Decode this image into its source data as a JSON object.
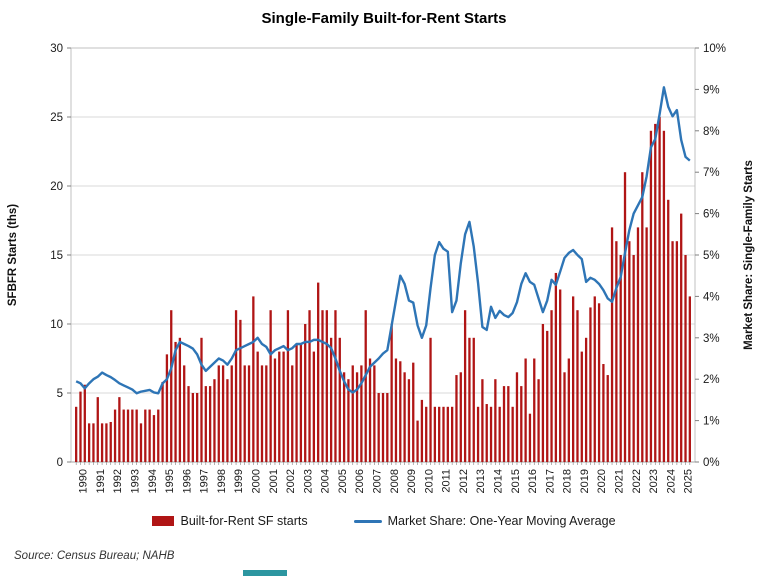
{
  "title": "Single-Family Built-for-Rent Starts",
  "source_note": "Source: Census Bureau; NAHB",
  "legend": {
    "bar_label": "Built-for-Rent SF starts",
    "line_label": "Market Share: One-Year Moving Average"
  },
  "colors": {
    "bar": "#b01515",
    "line": "#2e75b6",
    "grid": "#d9d9d9",
    "border": "#c0c0c0",
    "axis": "#a6a6a6",
    "tick": "#808080",
    "text": "#1a1a1a",
    "accent": "#2c96a0"
  },
  "chart_data": {
    "type": "bar",
    "subtype": "combo-bar-line",
    "frequency": "quarterly",
    "start": "1990Q1",
    "end": "2025Q3",
    "x_year_labels": [
      1990,
      1991,
      1992,
      1993,
      1994,
      1995,
      1996,
      1997,
      1998,
      1999,
      2000,
      2001,
      2002,
      2003,
      2004,
      2005,
      2006,
      2007,
      2008,
      2009,
      2010,
      2011,
      2012,
      2013,
      2014,
      2015,
      2016,
      2017,
      2018,
      2019,
      2020,
      2021,
      2022,
      2023,
      2024,
      2025
    ],
    "left_axis": {
      "label": "SFBFR Starts (ths)",
      "min": 0,
      "max": 30,
      "ticks": [
        0,
        5,
        10,
        15,
        20,
        25,
        30
      ]
    },
    "right_axis": {
      "label": "Market Share: Single-Family Starts",
      "min": 0,
      "max": 10,
      "ticks": [
        "0%",
        "1%",
        "2%",
        "3%",
        "4%",
        "5%",
        "6%",
        "7%",
        "8%",
        "9%",
        "10%"
      ]
    },
    "grid": true,
    "legend_position": "bottom",
    "series": [
      {
        "name": "Built-for-Rent SF starts",
        "type": "bar",
        "axis": "left",
        "unit": "thousands of starts",
        "values": [
          4.0,
          5.1,
          5.6,
          2.8,
          2.8,
          4.7,
          2.8,
          2.8,
          2.9,
          3.8,
          4.7,
          3.8,
          3.8,
          3.8,
          3.8,
          2.8,
          3.8,
          3.8,
          3.4,
          3.8,
          5.8,
          7.8,
          11.0,
          8.7,
          9.0,
          7.0,
          5.5,
          5.0,
          5.0,
          9.0,
          5.5,
          5.5,
          6.0,
          7.0,
          7.0,
          6.0,
          7.0,
          11.0,
          10.3,
          7.0,
          7.0,
          12.0,
          8.0,
          7.0,
          7.0,
          11.0,
          7.5,
          8.0,
          8.0,
          11.0,
          7.0,
          8.5,
          8.5,
          10.0,
          11.0,
          8.0,
          13.0,
          11.0,
          11.0,
          9.0,
          11.0,
          9.0,
          6.5,
          6.0,
          7.0,
          6.5,
          7.0,
          11.0,
          7.5,
          7.0,
          5.0,
          5.0,
          5.0,
          10.0,
          7.5,
          7.3,
          6.5,
          6.0,
          7.2,
          3.0,
          4.5,
          4.0,
          9.0,
          4.0,
          4.0,
          4.0,
          4.0,
          4.0,
          6.3,
          6.5,
          11.0,
          9.0,
          9.0,
          4.0,
          6.0,
          4.2,
          4.0,
          6.0,
          4.0,
          5.5,
          5.5,
          4.0,
          6.5,
          5.5,
          7.5,
          3.5,
          7.5,
          6.0,
          10.0,
          9.5,
          11.0,
          13.7,
          12.5,
          6.5,
          7.5,
          12.0,
          11.0,
          8.0,
          9.0,
          11.2,
          12.0,
          11.5,
          7.1,
          6.3,
          17.0,
          16.0,
          15.0,
          21.0,
          16.0,
          15.0,
          17.0,
          21.0,
          17.0,
          24.0,
          24.5,
          25.0,
          24.0,
          19.0,
          16.0,
          16.0,
          18.0,
          15.0,
          12.0
        ]
      },
      {
        "name": "Market Share: One-Year Moving Average",
        "type": "line",
        "axis": "right",
        "unit": "percent",
        "values": [
          1.95,
          1.9,
          1.78,
          1.9,
          2.0,
          2.06,
          2.16,
          2.1,
          2.05,
          1.98,
          1.9,
          1.85,
          1.8,
          1.75,
          1.66,
          1.7,
          1.72,
          1.74,
          1.68,
          1.66,
          1.9,
          2.0,
          2.26,
          2.7,
          2.9,
          2.85,
          2.8,
          2.74,
          2.6,
          2.35,
          2.2,
          2.3,
          2.4,
          2.5,
          2.45,
          2.35,
          2.5,
          2.7,
          2.75,
          2.8,
          2.85,
          2.9,
          3.0,
          2.85,
          2.78,
          2.6,
          2.7,
          2.75,
          2.8,
          2.7,
          2.75,
          2.85,
          2.85,
          2.9,
          2.9,
          2.95,
          2.95,
          2.9,
          2.85,
          2.75,
          2.5,
          2.2,
          1.95,
          1.75,
          1.68,
          1.75,
          1.9,
          2.1,
          2.3,
          2.4,
          2.5,
          2.62,
          2.7,
          3.3,
          3.9,
          4.5,
          4.3,
          3.9,
          3.85,
          3.3,
          3.0,
          3.3,
          4.2,
          5.0,
          5.31,
          5.15,
          5.08,
          3.62,
          3.9,
          4.8,
          5.5,
          5.8,
          5.2,
          4.32,
          3.26,
          3.19,
          3.75,
          3.48,
          3.65,
          3.55,
          3.5,
          3.6,
          3.86,
          4.3,
          4.56,
          4.35,
          4.28,
          3.95,
          3.62,
          3.9,
          4.4,
          4.28,
          4.6,
          4.93,
          5.05,
          5.12,
          5.0,
          4.9,
          4.35,
          4.45,
          4.4,
          4.3,
          4.15,
          3.95,
          3.87,
          4.2,
          4.47,
          5.05,
          5.6,
          6.0,
          6.2,
          6.4,
          6.9,
          7.6,
          7.8,
          8.4,
          9.05,
          8.58,
          8.35,
          8.5,
          7.78,
          7.37,
          7.28
        ]
      }
    ]
  }
}
